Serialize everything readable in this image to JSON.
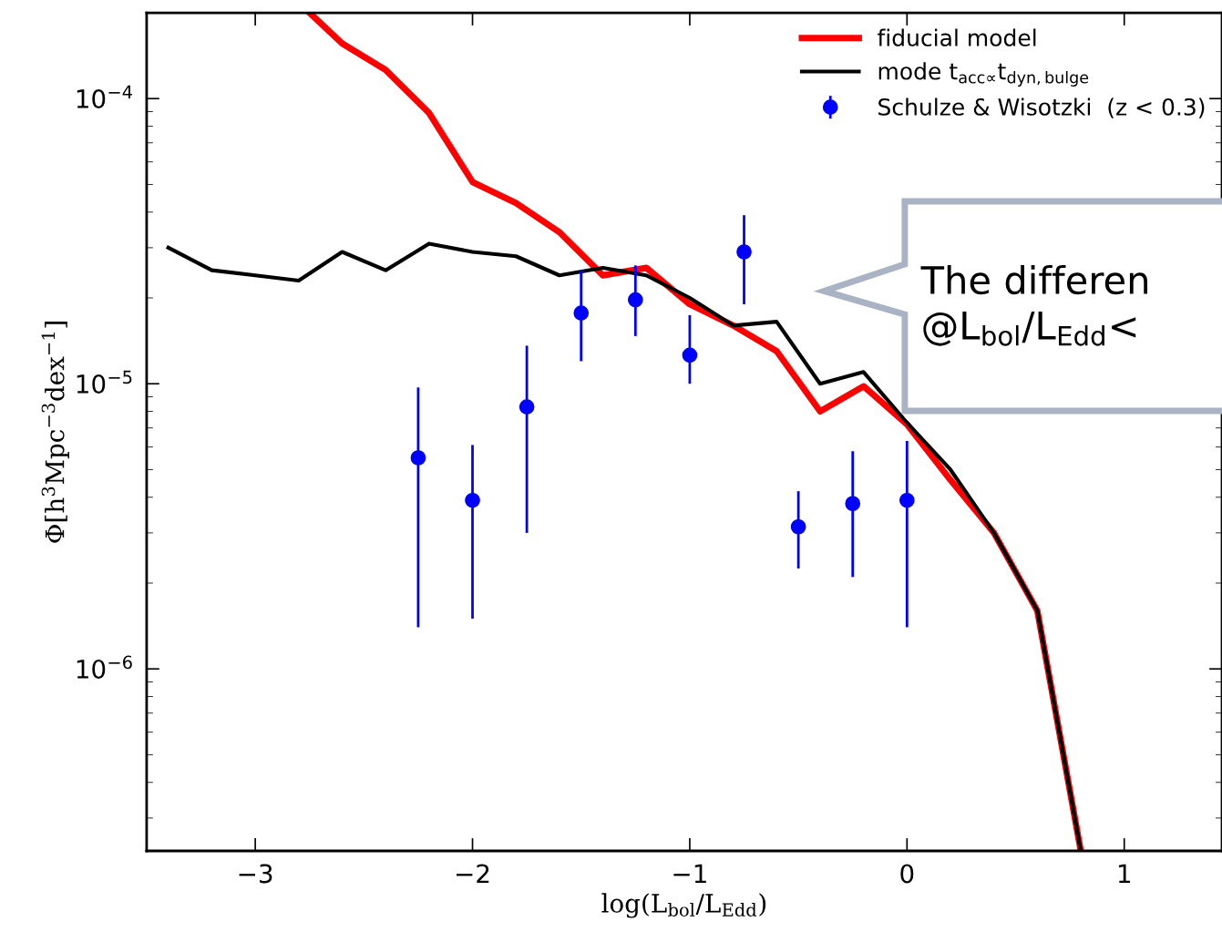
{
  "chart_data": {
    "type": "line",
    "xlabel": "log(L$_{bol}$/L$_{Edd}$)",
    "ylabel": "Φ[h$^{3}$Mpc$^{−3}$dex$^{−1}$]",
    "xlim": [
      -3.5,
      1.45
    ],
    "ylim": [
      2.3e-07,
      0.0002
    ],
    "log": "y",
    "xticks": [
      {
        "value": -3,
        "label": "−3"
      },
      {
        "value": -2,
        "label": "−2"
      },
      {
        "value": -1,
        "label": "−1"
      },
      0,
      1
    ],
    "yticks": [
      {
        "value": 1e-06,
        "label": "10$^{−6}$"
      },
      {
        "value": 1e-05,
        "label": "10$^{−5}$"
      },
      {
        "value": 0.0001,
        "label": "10$^{−4}$"
      }
    ],
    "legend": "top right",
    "grid": false,
    "series": [
      {
        "name": "fiducial model",
        "color": "#ff0000",
        "x": [
          -2.75,
          -2.6,
          -2.4,
          -2.2,
          -2.0,
          -1.8,
          -1.6,
          -1.4,
          -1.2,
          -1.0,
          -0.8,
          -0.6,
          -0.4,
          -0.2,
          0.0,
          0.2,
          0.4,
          0.6,
          0.8
        ],
        "values": [
          0.0002,
          0.000156,
          0.000126,
          8.9e-05,
          5.1e-05,
          4.3e-05,
          3.4e-05,
          2.4e-05,
          2.55e-05,
          1.9e-05,
          1.6e-05,
          1.3e-05,
          8e-06,
          9.8e-06,
          7.2e-06,
          4.6e-06,
          3e-06,
          1.6e-06,
          2.3e-07
        ]
      },
      {
        "name": "mode t$_{acc∝}$t$_{dyn,bulge}$",
        "color": "#000000",
        "x": [
          -3.4,
          -3.2,
          -3.0,
          -2.8,
          -2.6,
          -2.4,
          -2.2,
          -2.0,
          -1.8,
          -1.6,
          -1.4,
          -1.2,
          -1.0,
          -0.8,
          -0.6,
          -0.4,
          -0.2,
          0.0,
          0.2,
          0.4,
          0.6,
          0.8
        ],
        "values": [
          3e-05,
          2.5e-05,
          2.4e-05,
          2.3e-05,
          2.9e-05,
          2.5e-05,
          3.1e-05,
          2.9e-05,
          2.8e-05,
          2.4e-05,
          2.55e-05,
          2.4e-05,
          2e-05,
          1.6e-05,
          1.65e-05,
          1e-05,
          1.1e-05,
          7.3e-06,
          5e-06,
          3e-06,
          1.6e-06,
          2.3e-07
        ]
      },
      {
        "name": "Schulze & Wisotzki  (z < 0.3)",
        "type": "scatter",
        "marker": "circle",
        "color": "#0000ff",
        "x": [
          -2.25,
          -2.0,
          -1.75,
          -1.5,
          -1.25,
          -1.0,
          -0.75,
          -0.5,
          -0.25,
          0.0
        ],
        "values": [
          5.5e-06,
          3.9e-06,
          8.3e-06,
          1.77e-05,
          1.97e-05,
          1.26e-05,
          2.9e-05,
          3.15e-06,
          3.8e-06,
          3.9e-06
        ],
        "errors": [
          [
            1.4e-06,
            9.7e-06
          ],
          [
            1.5e-06,
            6.1e-06
          ],
          [
            3e-06,
            1.36e-05
          ],
          [
            1.2e-05,
            2.5e-05
          ],
          [
            1.47e-05,
            2.6e-05
          ],
          [
            1e-05,
            1.74e-05
          ],
          [
            1.9e-05,
            3.9e-05
          ],
          [
            2.25e-06,
            4.2e-06
          ],
          [
            2.1e-06,
            5.8e-06
          ],
          [
            1.4e-06,
            6.3e-06
          ]
        ]
      }
    ],
    "annotations": [
      "The differen\n@L$_{bol}$/L$_{Edd}$<"
    ]
  }
}
